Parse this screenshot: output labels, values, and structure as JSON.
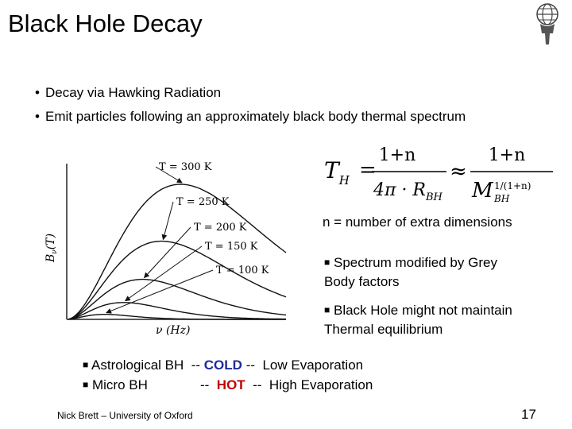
{
  "slide": {
    "title": "Black Hole Decay",
    "bullets": [
      "Decay via Hawking Radiation",
      "Emit particles following an approximately black body thermal spectrum"
    ],
    "n_description": "n = number of extra dimensions",
    "notes": [
      {
        "line1": "Spectrum modified by Grey",
        "line2": "Body factors"
      },
      {
        "line1": "Black Hole might not maintain",
        "line2": "Thermal equilibrium"
      }
    ],
    "comparison": {
      "row1": {
        "label": "Astrological BH",
        "sep1": "--",
        "temp": "COLD",
        "sep2": "--",
        "desc": "Low Evaporation"
      },
      "row2": {
        "label": "Micro BH",
        "sep1": "--",
        "temp": "HOT",
        "sep2": "--",
        "desc": "High Evaporation"
      }
    },
    "footer": "Nick Brett – University of Oxford",
    "page_number": "17",
    "colors": {
      "cold": "#1f2a9c",
      "hot": "#c40000"
    },
    "logo": "atlas-globe-logo"
  },
  "formula": {
    "lhs": "T",
    "lhs_sub": "H",
    "num": "1+n",
    "den1_pre": "4π · R",
    "den1_sub": "BH",
    "approx": "≈",
    "den2": "M",
    "den2_sub": "BH",
    "den2_sup": "1/(1+n)"
  },
  "plot": {
    "ylabel": "B",
    "ylabel_sub": "ν",
    "ylabel_arg": "(T)",
    "xlabel": "ν (Hz)",
    "curves": [
      {
        "label": "T = 300 K",
        "temperature": 300
      },
      {
        "label": "T = 250 K",
        "temperature": 250
      },
      {
        "label": "T = 200 K",
        "temperature": 200
      },
      {
        "label": "T = 150 K",
        "temperature": 150
      },
      {
        "label": "T = 100 K",
        "temperature": 100
      }
    ]
  }
}
